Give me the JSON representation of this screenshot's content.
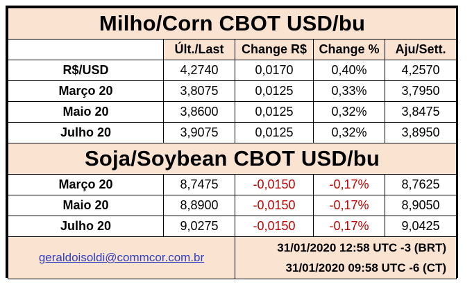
{
  "corn": {
    "title": "Milho/Corn CBOT USD/bu",
    "headers": [
      "Últ./Last",
      "Change R$",
      "Change %",
      "Aju/Sett."
    ],
    "rows": [
      {
        "label": "R$/USD",
        "last": "4,2740",
        "change": "0,0170",
        "pct": "0,40%",
        "sett": "4,2570"
      },
      {
        "label": "Março 20",
        "last": "3,8075",
        "change": "0,0125",
        "pct": "0,33%",
        "sett": "3,7950"
      },
      {
        "label": "Maio 20",
        "last": "3,8600",
        "change": "0,0125",
        "pct": "0,32%",
        "sett": "3,8475"
      },
      {
        "label": "Julho 20",
        "last": "3,9075",
        "change": "0,0125",
        "pct": "0,32%",
        "sett": "3,8950"
      }
    ]
  },
  "soy": {
    "title": "Soja/Soybean CBOT USD/bu",
    "rows": [
      {
        "label": "Março 20",
        "last": "8,7475",
        "change": "-0,0150",
        "pct": "-0,17%",
        "sett": "8,7625"
      },
      {
        "label": "Maio 20",
        "last": "8,8900",
        "change": "-0,0150",
        "pct": "-0,17%",
        "sett": "8,9050"
      },
      {
        "label": "Julho 20",
        "last": "9,0275",
        "change": "-0,0150",
        "pct": "-0,17%",
        "sett": "9,0425"
      }
    ]
  },
  "footer": {
    "email": "geraldoisoldi@commcor.com.br",
    "time_brt": "31/01/2020 12:58  UTC -3 (BRT)",
    "time_ct": "31/01/2020 09:58  UTC -6 (CT)"
  },
  "colors": {
    "background": "#fbe3d2",
    "negative": "#c00000",
    "link": "#2f3fbf"
  }
}
